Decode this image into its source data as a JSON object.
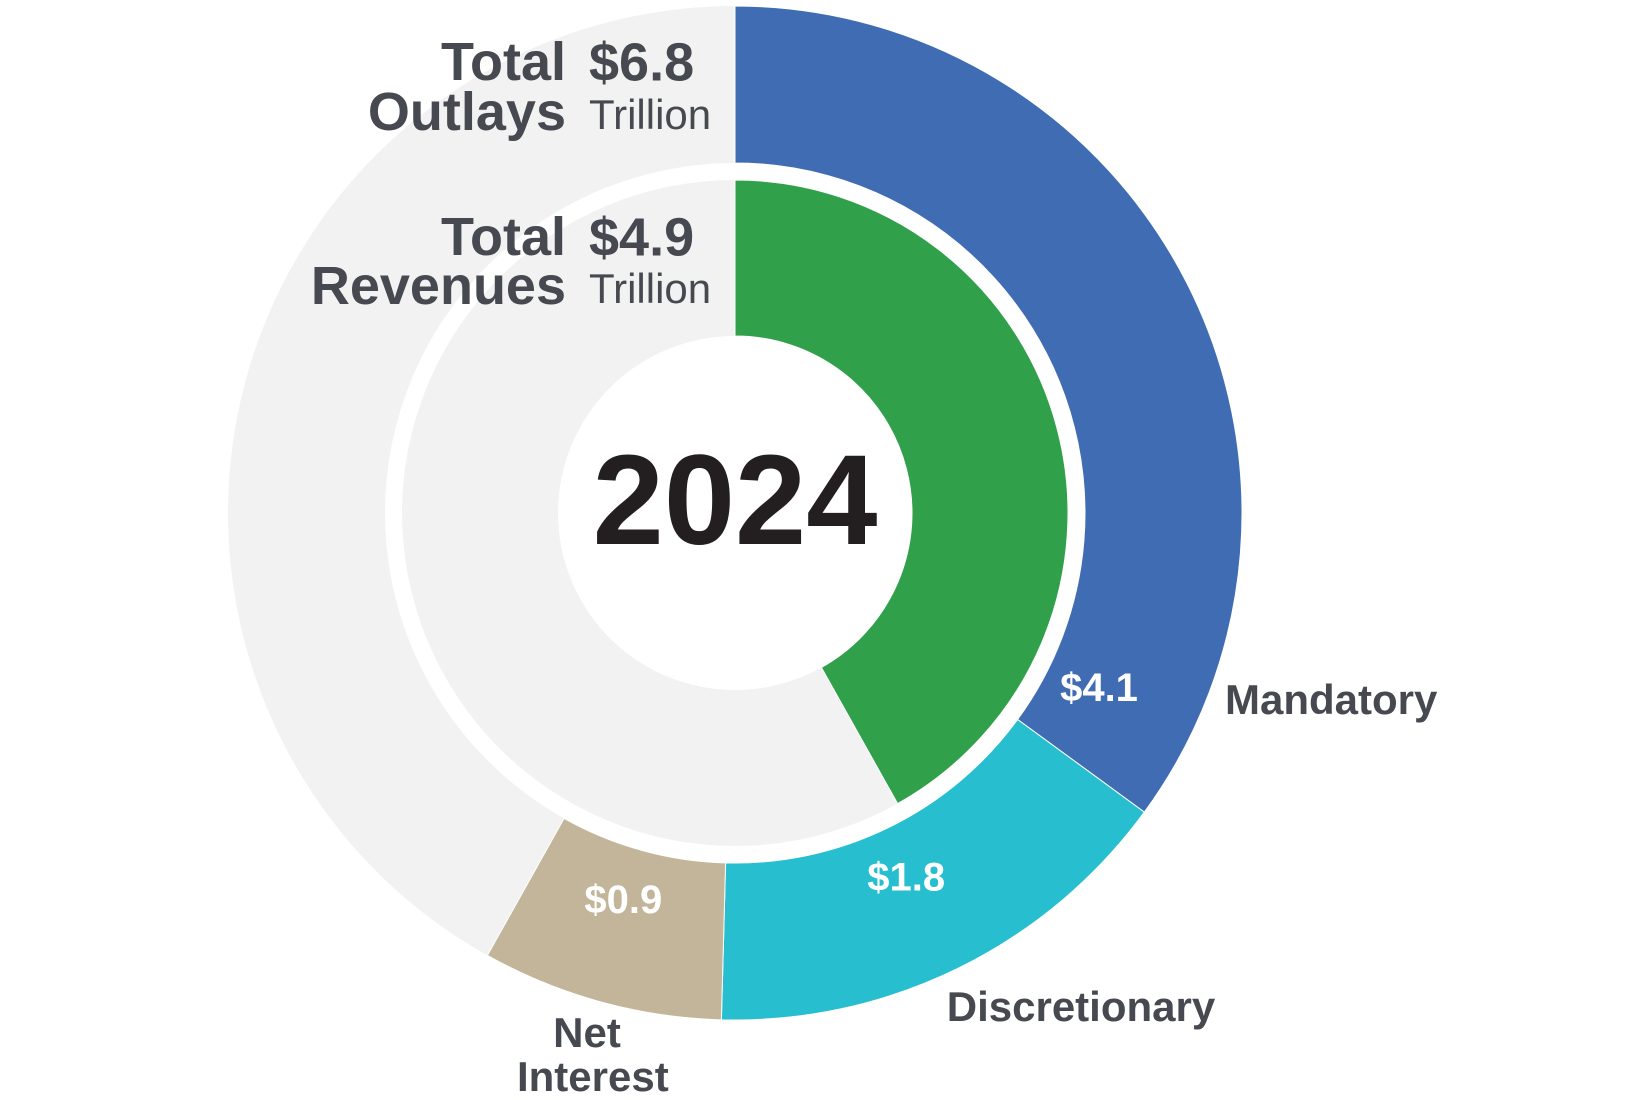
{
  "chart_data": {
    "type": "donut",
    "title": "2024",
    "ylim": [
      0,
      11.7
    ],
    "rings": [
      {
        "name": "Total Outlays",
        "total_label": "$6.8",
        "unit": "Trillion",
        "categories": [
          "Mandatory",
          "Discretionary",
          "Net Interest"
        ],
        "values": [
          4.1,
          1.8,
          0.9
        ],
        "value_labels": [
          "$4.1",
          "$1.8",
          "$0.9"
        ],
        "colors": [
          "#3f6cb2",
          "#27bfd0",
          "#c2b59a"
        ]
      },
      {
        "name": "Total Revenues",
        "total_label": "$4.9",
        "unit": "Trillion",
        "values": [
          4.9
        ],
        "colors": [
          "#31a04a"
        ]
      }
    ]
  }
}
